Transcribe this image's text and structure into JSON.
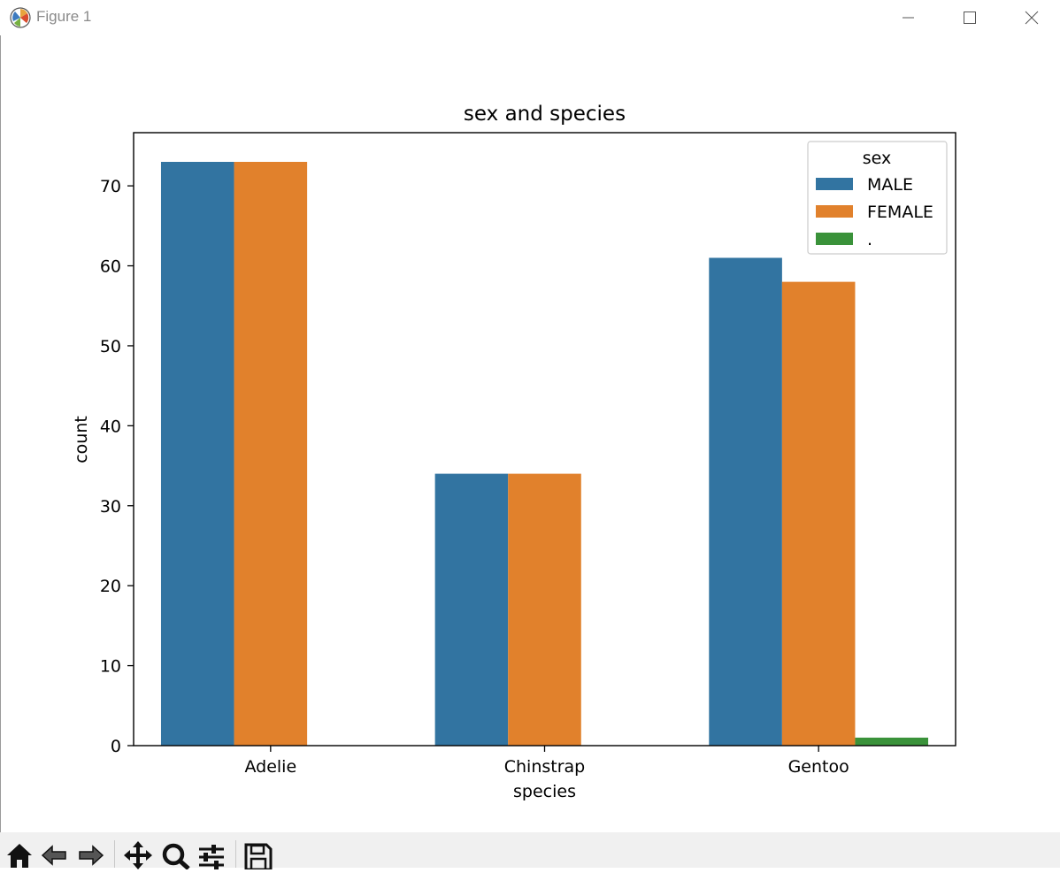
{
  "window": {
    "title": "Figure 1",
    "controls": [
      "minimize-icon",
      "maximize-icon",
      "close-icon"
    ]
  },
  "toolbar": {
    "tools": [
      "home-icon",
      "back-icon",
      "forward-icon",
      "pan-icon",
      "zoom-icon",
      "configure-subplots-icon",
      "save-icon"
    ]
  },
  "chart_data": {
    "type": "bar",
    "title": "sex and species",
    "xlabel": "species",
    "ylabel": "count",
    "categories": [
      "Adelie",
      "Chinstrap",
      "Gentoo"
    ],
    "series": [
      {
        "name": "MALE",
        "color": "#3274a1",
        "values": [
          73,
          34,
          61
        ]
      },
      {
        "name": "FEMALE",
        "color": "#e1812c",
        "values": [
          73,
          34,
          58
        ]
      },
      {
        "name": ".",
        "color": "#3a923a",
        "values": [
          0,
          0,
          1
        ]
      }
    ],
    "ylim": [
      0,
      76.65
    ],
    "yticks": [
      0,
      10,
      20,
      30,
      40,
      50,
      60,
      70
    ],
    "legend": {
      "title": "sex",
      "placement": "upper right"
    },
    "grid": false
  }
}
